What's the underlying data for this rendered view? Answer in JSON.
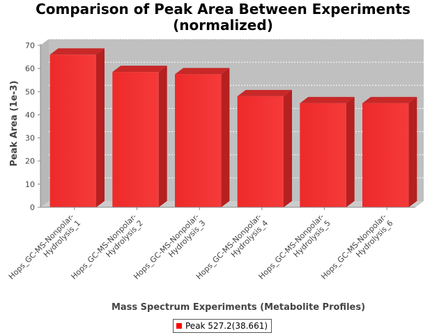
{
  "chart_data": {
    "type": "bar",
    "title_lines": [
      "Comparison of Peak Area Between Experiments",
      "(normalized)"
    ],
    "xlabel": "Mass Spectrum Experiments (Metabolite Profiles)",
    "ylabel": "Peak Area (1e-3)",
    "ylim": [
      0,
      70
    ],
    "yticks": [
      0,
      10,
      20,
      30,
      40,
      50,
      60,
      70
    ],
    "grid": true,
    "legend_position": "bottom",
    "categories": [
      {
        "line1": "Hops_GC-MS-Nonpolar-",
        "line2": "Hydrolysis_1"
      },
      {
        "line1": "Hops_GC-MS-Nonpolar-",
        "line2": "Hydrolysis_2"
      },
      {
        "line1": "Hops_GC-MS-Nonpolar-",
        "line2": "Hydrolysis_3"
      },
      {
        "line1": "Hops_GC-MS-Nonpolar-",
        "line2": "Hydrolysis_4"
      },
      {
        "line1": "Hops_GC-MS-Nonpolar-",
        "line2": "Hydrolysis_5"
      },
      {
        "line1": "Hops_GC-MS-Nonpolar-",
        "line2": "Hydrolysis_6"
      }
    ],
    "series": [
      {
        "name": "Peak 527.2(38.661)",
        "color": "#ff0000",
        "values": [
          66,
          58.5,
          57.5,
          48,
          45,
          45
        ]
      }
    ]
  }
}
